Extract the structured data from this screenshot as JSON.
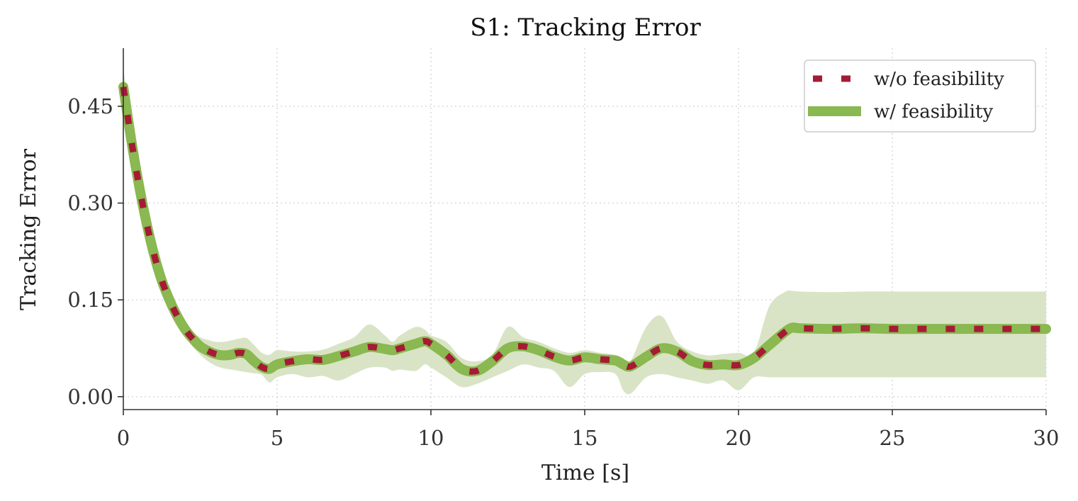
{
  "chart_data": {
    "type": "line",
    "title": "S1: Tracking Error",
    "xlabel": "Time [s]",
    "ylabel": "Tracking Error",
    "xlim": [
      0,
      30
    ],
    "ylim": [
      -0.02,
      0.54
    ],
    "xticks": [
      0,
      5,
      10,
      15,
      20,
      25,
      30
    ],
    "xtick_labels": [
      "0",
      "5",
      "10",
      "15",
      "20",
      "25",
      "30"
    ],
    "yticks": [
      0.0,
      0.15,
      0.3,
      0.45
    ],
    "ytick_labels": [
      "0.00",
      "0.15",
      "0.30",
      "0.45"
    ],
    "grid": true,
    "legend_position": "top-right",
    "colors": {
      "wo_feasibility": "#A51B35",
      "w_feasibility": "#8AB851",
      "band": "#D9E4C6"
    },
    "x": [
      0,
      0.25,
      0.5,
      0.75,
      1,
      1.25,
      1.5,
      1.75,
      2,
      2.25,
      2.5,
      2.75,
      3,
      3.25,
      3.5,
      3.75,
      4,
      4.25,
      4.5,
      4.75,
      5,
      5.5,
      6,
      6.5,
      7,
      7.5,
      8,
      8.5,
      8.75,
      9,
      9.5,
      9.8,
      10,
      10.5,
      11,
      11.5,
      12,
      12.5,
      13,
      13.5,
      14,
      14.5,
      15,
      15.5,
      16,
      16.25,
      16.5,
      17,
      17.5,
      18,
      18.5,
      19,
      19.5,
      20,
      20.5,
      21,
      21.5,
      21.75,
      22,
      23,
      24,
      25,
      26,
      27,
      28,
      29,
      30
    ],
    "series": [
      {
        "name": "w/o feasibility",
        "values": [
          0.48,
          0.4,
          0.33,
          0.27,
          0.22,
          0.18,
          0.15,
          0.125,
          0.105,
          0.09,
          0.078,
          0.071,
          0.066,
          0.064,
          0.065,
          0.068,
          0.066,
          0.055,
          0.046,
          0.043,
          0.05,
          0.055,
          0.058,
          0.057,
          0.063,
          0.07,
          0.077,
          0.074,
          0.072,
          0.075,
          0.082,
          0.086,
          0.082,
          0.065,
          0.043,
          0.04,
          0.055,
          0.075,
          0.078,
          0.072,
          0.062,
          0.056,
          0.061,
          0.058,
          0.056,
          0.05,
          0.047,
          0.062,
          0.075,
          0.07,
          0.055,
          0.049,
          0.05,
          0.049,
          0.06,
          0.08,
          0.1,
          0.107,
          0.106,
          0.105,
          0.106,
          0.105,
          0.105,
          0.105,
          0.105,
          0.105,
          0.105
        ]
      },
      {
        "name": "w/ feasibility",
        "values": [
          0.48,
          0.4,
          0.33,
          0.27,
          0.22,
          0.18,
          0.15,
          0.125,
          0.105,
          0.09,
          0.078,
          0.071,
          0.066,
          0.064,
          0.065,
          0.068,
          0.066,
          0.055,
          0.046,
          0.043,
          0.05,
          0.055,
          0.058,
          0.057,
          0.063,
          0.07,
          0.077,
          0.074,
          0.072,
          0.075,
          0.082,
          0.086,
          0.082,
          0.065,
          0.043,
          0.04,
          0.055,
          0.075,
          0.078,
          0.072,
          0.062,
          0.056,
          0.061,
          0.058,
          0.056,
          0.05,
          0.047,
          0.062,
          0.075,
          0.07,
          0.055,
          0.049,
          0.05,
          0.049,
          0.06,
          0.08,
          0.1,
          0.107,
          0.106,
          0.105,
          0.106,
          0.105,
          0.105,
          0.105,
          0.105,
          0.105,
          0.105
        ],
        "band_upper": [
          0.51,
          0.42,
          0.345,
          0.285,
          0.232,
          0.19,
          0.158,
          0.133,
          0.113,
          0.1,
          0.092,
          0.088,
          0.085,
          0.085,
          0.087,
          0.09,
          0.091,
          0.08,
          0.068,
          0.065,
          0.072,
          0.07,
          0.07,
          0.073,
          0.082,
          0.092,
          0.112,
          0.095,
          0.085,
          0.095,
          0.108,
          0.104,
          0.095,
          0.085,
          0.06,
          0.055,
          0.065,
          0.108,
          0.092,
          0.085,
          0.075,
          0.068,
          0.072,
          0.068,
          0.065,
          0.06,
          0.056,
          0.108,
          0.125,
          0.085,
          0.07,
          0.064,
          0.066,
          0.068,
          0.068,
          0.14,
          0.162,
          0.164,
          0.163,
          0.162,
          0.163,
          0.163,
          0.163,
          0.163,
          0.163,
          0.163,
          0.163
        ],
        "band_lower": [
          0.44,
          0.37,
          0.31,
          0.25,
          0.205,
          0.168,
          0.14,
          0.115,
          0.095,
          0.078,
          0.065,
          0.055,
          0.048,
          0.044,
          0.042,
          0.04,
          0.038,
          0.036,
          0.034,
          0.022,
          0.03,
          0.035,
          0.03,
          0.032,
          0.025,
          0.035,
          0.045,
          0.045,
          0.04,
          0.042,
          0.04,
          0.05,
          0.045,
          0.03,
          0.015,
          0.02,
          0.03,
          0.04,
          0.05,
          0.045,
          0.04,
          0.015,
          0.035,
          0.038,
          0.035,
          0.01,
          0.005,
          0.03,
          0.035,
          0.03,
          0.025,
          0.02,
          0.025,
          0.01,
          0.03,
          0.03,
          0.03,
          0.03,
          0.03,
          0.03,
          0.03,
          0.03,
          0.03,
          0.03,
          0.03,
          0.03,
          0.03
        ]
      }
    ]
  }
}
